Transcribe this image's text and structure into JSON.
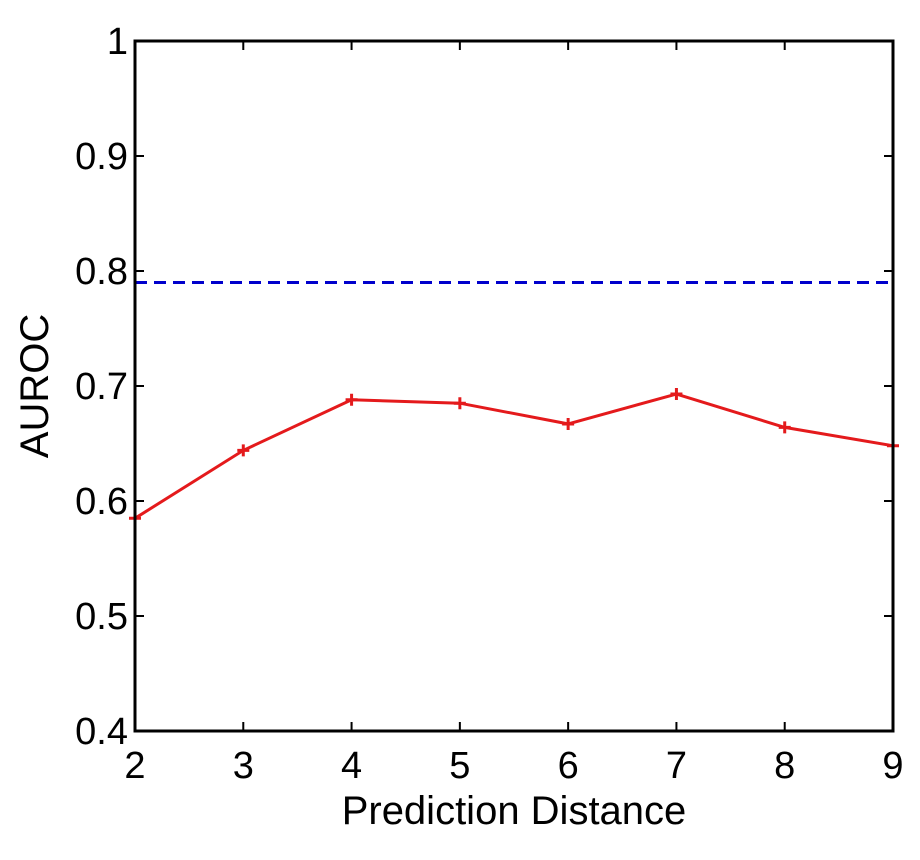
{
  "chart_data": {
    "type": "line",
    "title": "",
    "xlabel": "Prediction Distance",
    "ylabel": "AUROC",
    "xlim": [
      2,
      9
    ],
    "ylim": [
      0.4,
      1.0
    ],
    "xticks": [
      2,
      3,
      4,
      5,
      6,
      7,
      8,
      9
    ],
    "xtick_labels": [
      "2",
      "3",
      "4",
      "5",
      "6",
      "7",
      "8",
      "9"
    ],
    "yticks": [
      0.4,
      0.5,
      0.6,
      0.7,
      0.8,
      0.9,
      1.0
    ],
    "ytick_labels": [
      "0.4",
      "0.5",
      "0.6",
      "0.7",
      "0.8",
      "0.9",
      "1"
    ],
    "grid": false,
    "series": [
      {
        "color": "#e41a1c",
        "line_style": "solid",
        "marker": "plus",
        "x": [
          2,
          3,
          4,
          5,
          6,
          7,
          8,
          9
        ],
        "y": [
          0.585,
          0.644,
          0.688,
          0.685,
          0.667,
          0.693,
          0.664,
          0.648
        ]
      },
      {
        "color": "#0000cc",
        "line_style": "dashed",
        "marker": "none",
        "x": [
          2,
          9
        ],
        "y": [
          0.79,
          0.79
        ]
      }
    ]
  }
}
